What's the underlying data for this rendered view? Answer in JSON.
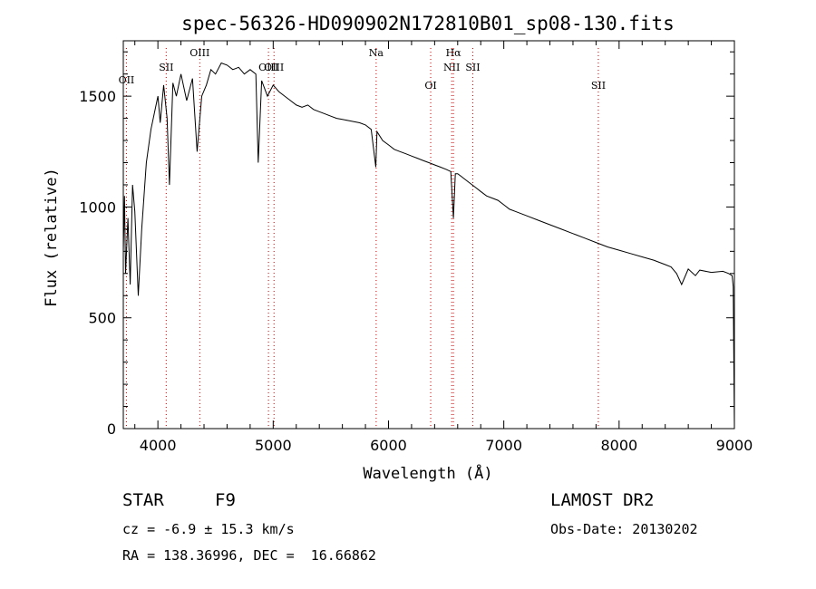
{
  "chart_data": {
    "type": "line",
    "title": "spec-56326-HD090902N172810B01_sp08-130.fits",
    "xlabel": "Wavelength (Å)",
    "ylabel": "Flux (relative)",
    "xlim": [
      3700,
      9000
    ],
    "ylim": [
      0,
      1750
    ],
    "x_ticks": [
      4000,
      5000,
      6000,
      7000,
      8000,
      9000
    ],
    "y_ticks": [
      0,
      500,
      1000,
      1500
    ],
    "grid": false,
    "line_color": "#000000",
    "marker_color": "#cc0000",
    "emission_lines": [
      {
        "name": "OII",
        "wavelength": 3727
      },
      {
        "name": "SII",
        "wavelength": 4072
      },
      {
        "name": "OIII",
        "wavelength": 4363
      },
      {
        "name": "OIII",
        "wavelength": 4959
      },
      {
        "name": "OIII",
        "wavelength": 5007
      },
      {
        "name": "Na",
        "wavelength": 5893
      },
      {
        "name": "OI",
        "wavelength": 6366
      },
      {
        "name": "Hα",
        "wavelength": 6563
      },
      {
        "name": "NII",
        "wavelength": 6548
      },
      {
        "name": "SII",
        "wavelength": 6731
      },
      {
        "name": "SII",
        "wavelength": 7820
      }
    ],
    "series": [
      {
        "x": [
          3700,
          3710,
          3720,
          3740,
          3760,
          3780,
          3800,
          3830,
          3860,
          3900,
          3940,
          3980,
          4000,
          4020,
          4050,
          4080,
          4100,
          4130,
          4160,
          4200,
          4250,
          4300,
          4340,
          4380,
          4420,
          4460,
          4500,
          4550,
          4600,
          4650,
          4700,
          4750,
          4800,
          4850,
          4870,
          4900,
          4950,
          5000,
          5050,
          5100,
          5150,
          5200,
          5250,
          5300,
          5350,
          5400,
          5450,
          5500,
          5550,
          5600,
          5650,
          5700,
          5750,
          5800,
          5850,
          5890,
          5900,
          5950,
          6000,
          6050,
          6100,
          6150,
          6200,
          6250,
          6300,
          6350,
          6400,
          6450,
          6500,
          6540,
          6563,
          6580,
          6600,
          6650,
          6700,
          6750,
          6800,
          6850,
          6900,
          6950,
          7000,
          7050,
          7100,
          7200,
          7300,
          7400,
          7500,
          7600,
          7700,
          7800,
          7900,
          8000,
          8100,
          8200,
          8300,
          8400,
          8450,
          8498,
          8542,
          8600,
          8662,
          8700,
          8800,
          8900,
          8950,
          8980,
          8990,
          9000
        ],
        "y": [
          800,
          1050,
          700,
          950,
          650,
          1100,
          980,
          600,
          900,
          1200,
          1350,
          1450,
          1500,
          1380,
          1550,
          1400,
          1100,
          1560,
          1500,
          1600,
          1480,
          1580,
          1250,
          1500,
          1550,
          1620,
          1600,
          1650,
          1640,
          1620,
          1630,
          1600,
          1620,
          1600,
          1200,
          1570,
          1500,
          1550,
          1520,
          1500,
          1480,
          1460,
          1450,
          1460,
          1440,
          1430,
          1420,
          1410,
          1400,
          1395,
          1390,
          1385,
          1380,
          1370,
          1350,
          1180,
          1340,
          1300,
          1280,
          1260,
          1250,
          1240,
          1230,
          1220,
          1210,
          1200,
          1190,
          1180,
          1170,
          1160,
          950,
          1150,
          1150,
          1130,
          1110,
          1090,
          1070,
          1050,
          1040,
          1030,
          1010,
          990,
          980,
          960,
          940,
          920,
          900,
          880,
          860,
          840,
          820,
          805,
          790,
          775,
          760,
          740,
          730,
          700,
          650,
          720,
          690,
          715,
          705,
          710,
          700,
          690,
          640,
          0
        ]
      }
    ]
  },
  "footer": {
    "object_class": "STAR",
    "subclass": "F9",
    "survey": "LAMOST DR2",
    "velocity": "cz = -6.9 ± 15.3 km/s",
    "obs_date": "Obs-Date: 20130202",
    "coords": "RA = 138.36996, DEC =  16.66862"
  }
}
